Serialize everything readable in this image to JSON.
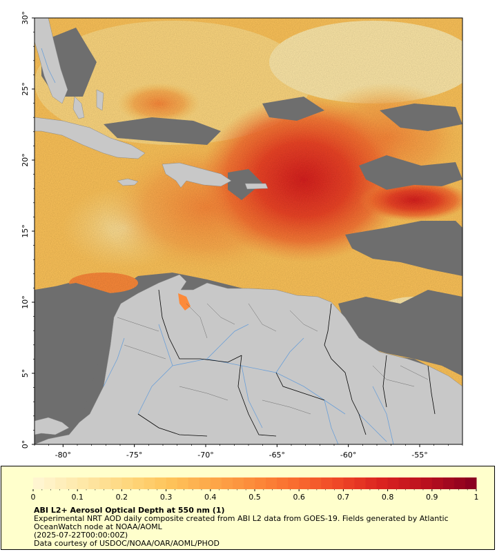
{
  "map": {
    "lat_range": [
      0,
      30
    ],
    "lon_range": [
      -82,
      -52
    ],
    "lat_ticks": [
      "0°",
      "5°",
      "10°",
      "15°",
      "20°",
      "25°",
      "30°"
    ],
    "lon_ticks": [
      "-80°",
      "-75°",
      "-70°",
      "-65°",
      "-60°",
      "-55°"
    ],
    "colors": {
      "ocean_nodata": "#6e6e6e",
      "land": "#c8c8c8",
      "river": "#6a9fd8",
      "border": "#000000"
    }
  },
  "colorbar": {
    "min": 0,
    "max": 1,
    "tick_labels": [
      "0",
      "0.1",
      "0.2",
      "0.3",
      "0.4",
      "0.5",
      "0.6",
      "0.7",
      "0.8",
      "0.9",
      "1"
    ],
    "colors": [
      "#fff5d0",
      "#fee8a8",
      "#fed880",
      "#fec45a",
      "#fda84a",
      "#fc8a3a",
      "#f96a2e",
      "#ee4526",
      "#d92020",
      "#b8101e",
      "#8b0020"
    ]
  },
  "legend": {
    "title": "ABI L2+ Aerosol Optical Depth at 550 nm (1)",
    "line1": "Experimental NRT AOD daily composite created from ABI L2 data from GOES-19. Fields generated by Atlantic OceanWatch node at NOAA/AOML",
    "line2": "(2025-07-22T00:00:00Z)",
    "line3": "Data courtesy of USDOC/NOAA/OAR/AOML/PHOD"
  }
}
